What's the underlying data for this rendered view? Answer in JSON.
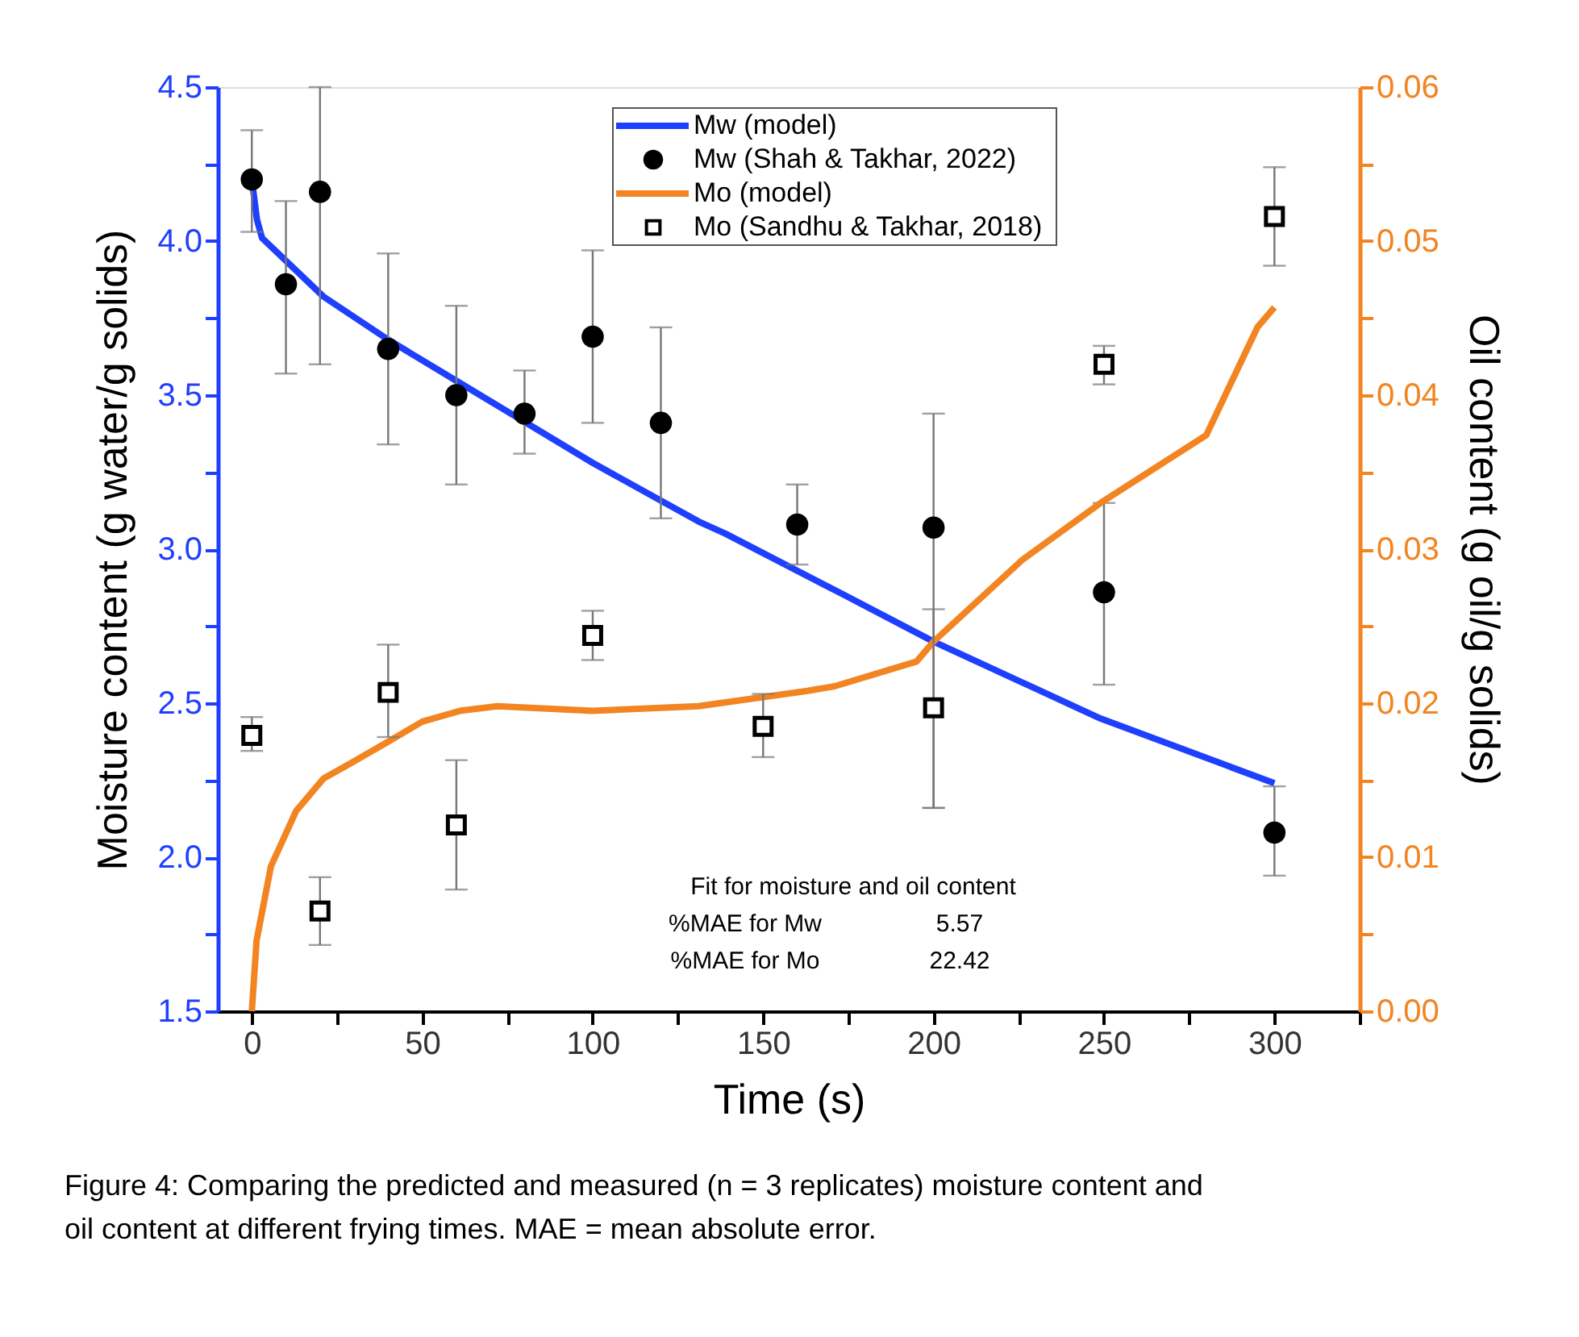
{
  "chart_data": {
    "type": "line",
    "xlabel": "Time (s)",
    "ylabel": "Moisture content (g water/g solids)",
    "y2label": "Oil content (g oil/g solids)",
    "xlim": [
      -10,
      325
    ],
    "xticks": [
      0,
      {
        "value": 25,
        "label": null
      },
      50,
      {
        "value": 75,
        "label": null
      },
      100,
      {
        "value": 125,
        "label": null
      },
      150,
      {
        "value": 175,
        "label": null
      },
      200,
      {
        "value": 225,
        "label": null
      },
      250,
      {
        "value": 275,
        "label": null
      },
      300,
      {
        "value": 325,
        "label": null
      }
    ],
    "ylim": [
      1.5,
      4.5
    ],
    "yticks": [
      1.5,
      {
        "value": 1.75,
        "label": null
      },
      {
        "value": 2,
        "label": "2.0"
      },
      {
        "value": 2.25,
        "label": null
      },
      2.5,
      {
        "value": 2.75,
        "label": null
      },
      {
        "value": 3,
        "label": "3.0"
      },
      {
        "value": 3.25,
        "label": null
      },
      3.5,
      {
        "value": 3.75,
        "label": null
      },
      {
        "value": 4,
        "label": "4.0"
      },
      {
        "value": 4.25,
        "label": null
      },
      4.5
    ],
    "y2lim": [
      0,
      0.06
    ],
    "y2ticks": [
      {
        "value": 0,
        "label": "0.00"
      },
      {
        "value": 0.005,
        "label": null
      },
      {
        "value": 0.01,
        "label": "0.01"
      },
      {
        "value": 0.015,
        "label": null
      },
      {
        "value": 0.02,
        "label": "0.02"
      },
      {
        "value": 0.025,
        "label": null
      },
      {
        "value": 0.03,
        "label": "0.03"
      },
      {
        "value": 0.035,
        "label": null
      },
      {
        "value": 0.04,
        "label": "0.04"
      },
      {
        "value": 0.045,
        "label": null
      },
      {
        "value": 0.05,
        "label": "0.05"
      },
      {
        "value": 0.055,
        "label": null
      },
      {
        "value": 0.06,
        "label": "0.06"
      }
    ],
    "grid": false,
    "legend": "top",
    "series": [
      {
        "name": "Mw (model)",
        "color": "#1f3fff",
        "line_style": "solid",
        "x": [
          0,
          1.5,
          3,
          21,
          40,
          61,
          100,
          131,
          139,
          174,
          200,
          249,
          300
        ],
        "values": [
          4.2,
          4.07,
          4.01,
          3.82,
          3.68,
          3.54,
          3.28,
          3.09,
          3.05,
          2.85,
          2.7,
          2.45,
          2.24
        ]
      },
      {
        "name": "Mw (Shah & Takhar, 2022)",
        "type": "scatter",
        "marker": "circle",
        "color": "#000000",
        "x": [
          0,
          10,
          20,
          40,
          60,
          80,
          100,
          120,
          160,
          200,
          250,
          300
        ],
        "values": [
          4.2,
          3.86,
          4.16,
          3.65,
          3.5,
          3.44,
          3.69,
          3.41,
          3.08,
          3.07,
          2.86,
          2.08
        ],
        "errors": [
          [
            4.03,
            4.36
          ],
          [
            3.57,
            4.13
          ],
          [
            3.6,
            4.5
          ],
          [
            3.34,
            3.96
          ],
          [
            3.21,
            3.79
          ],
          [
            3.31,
            3.58
          ],
          [
            3.41,
            3.97
          ],
          [
            3.1,
            3.72
          ],
          [
            2.95,
            3.21
          ],
          [
            2.16,
            3.44
          ],
          [
            2.56,
            3.15
          ],
          [
            1.94,
            2.23
          ]
        ]
      },
      {
        "name": "Mo (model)",
        "axis": "y2",
        "color": "#f28522",
        "line_style": "solid",
        "x": [
          0,
          1.4,
          5.6,
          13,
          21,
          29,
          40,
          50,
          61,
          72,
          100,
          131,
          163,
          171,
          195,
          200,
          226,
          249,
          280,
          295,
          300
        ],
        "values": [
          0,
          0.0046,
          0.0094,
          0.013,
          0.0151,
          0.0161,
          0.0175,
          0.0188,
          0.0195,
          0.0198,
          0.0195,
          0.0198,
          0.0208,
          0.0211,
          0.0227,
          0.024,
          0.0293,
          0.033,
          0.0374,
          0.0444,
          0.0457
        ]
      },
      {
        "name": "Mo (Sandhu & Takhar, 2018)",
        "type": "scatter",
        "marker": "square",
        "axis": "y2",
        "color": "#000000",
        "x": [
          0,
          20,
          40,
          60,
          100,
          150,
          200,
          250,
          300
        ],
        "values": [
          0.0179,
          0.0065,
          0.0207,
          0.0121,
          0.0244,
          0.0185,
          0.0197,
          0.042,
          0.0516
        ],
        "errors": [
          [
            0.0169,
            0.0191
          ],
          [
            0.0043,
            0.0087
          ],
          [
            0.0178,
            0.0238
          ],
          [
            0.0079,
            0.0163
          ],
          [
            0.0228,
            0.026
          ],
          [
            0.0165,
            0.0206
          ],
          [
            0.0132,
            0.0261
          ],
          [
            0.0407,
            0.0432
          ],
          [
            0.0484,
            0.0548
          ]
        ]
      }
    ],
    "annotations": [
      "Fit for moisture and oil content",
      "%MAE for Mw",
      "5.57",
      "%MAE for Mo",
      "22.42",
      "Figure 4: Comparing the predicted and measured (n = 3 replicates) moisture content and oil content at different frying times. MAE = mean absolute error."
    ]
  }
}
